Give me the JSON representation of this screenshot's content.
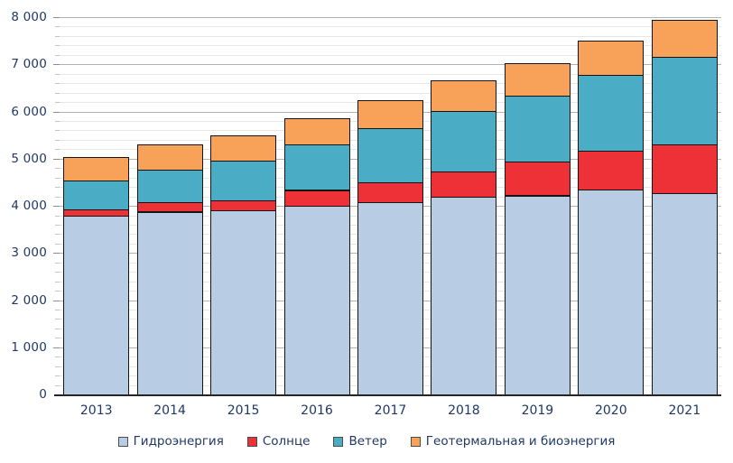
{
  "chart_data": {
    "type": "bar",
    "stacked": true,
    "title": "",
    "categories": [
      "2013",
      "2014",
      "2015",
      "2016",
      "2017",
      "2018",
      "2019",
      "2020",
      "2021"
    ],
    "series": [
      {
        "name": "Гидроэнергия",
        "color": "#B8CCE4",
        "values": [
          3785,
          3875,
          3900,
          4005,
          4070,
          4190,
          4220,
          4345,
          4275
        ]
      },
      {
        "name": "Солнце",
        "color": "#ED3137",
        "values": [
          130,
          195,
          210,
          330,
          430,
          530,
          710,
          825,
          1020
        ]
      },
      {
        "name": "Ветер",
        "color": "#4AADC5",
        "values": [
          625,
          695,
          855,
          960,
          1150,
          1290,
          1400,
          1605,
          1855
        ]
      },
      {
        "name": "Геотермальная и биоэнергия",
        "color": "#F7A159",
        "values": [
          495,
          530,
          535,
          555,
          590,
          660,
          690,
          725,
          785
        ]
      }
    ],
    "totals": [
      5035,
      5295,
      5500,
      5850,
      6240,
      6670,
      7020,
      7500,
      7935
    ],
    "ylim": [
      0,
      8000
    ],
    "y_major_step": 1000,
    "y_minor_step": 200,
    "y_tick_labels": [
      "0",
      "1 000",
      "2 000",
      "3 000",
      "4 000",
      "5 000",
      "6 000",
      "7 000",
      "8 000"
    ],
    "xlabel": "",
    "ylabel": "",
    "grid": "horizontal, minor every 200 (light), major every 1000 (darker)",
    "legend_position": "bottom-center"
  },
  "styles": {
    "text_color": "#1F3864",
    "grid_major": "#B3B3B3",
    "grid_minor": "#E7E7E7",
    "axis_line": "#262626",
    "bar_border": "#141414",
    "background": "#FFFFFF"
  }
}
